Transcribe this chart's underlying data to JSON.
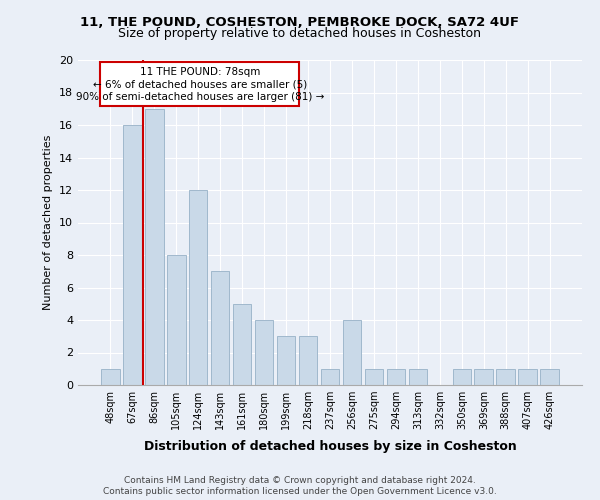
{
  "title1": "11, THE POUND, COSHESTON, PEMBROKE DOCK, SA72 4UF",
  "title2": "Size of property relative to detached houses in Cosheston",
  "xlabel": "Distribution of detached houses by size in Cosheston",
  "ylabel": "Number of detached properties",
  "categories": [
    "48sqm",
    "67sqm",
    "86sqm",
    "105sqm",
    "124sqm",
    "143sqm",
    "161sqm",
    "180sqm",
    "199sqm",
    "218sqm",
    "237sqm",
    "256sqm",
    "275sqm",
    "294sqm",
    "313sqm",
    "332sqm",
    "350sqm",
    "369sqm",
    "388sqm",
    "407sqm",
    "426sqm"
  ],
  "values": [
    1,
    16,
    17,
    8,
    12,
    7,
    5,
    4,
    3,
    3,
    1,
    4,
    1,
    1,
    1,
    0,
    1,
    1,
    1,
    1,
    1
  ],
  "bar_color": "#c9d9e8",
  "bar_edge_color": "#a0b8cc",
  "marker_label": "11 THE POUND: 78sqm",
  "annotation_line1": "← 6% of detached houses are smaller (5)",
  "annotation_line2": "90% of semi-detached houses are larger (81) →",
  "annotation_box_color": "#ffffff",
  "annotation_box_edge_color": "#cc0000",
  "vline_color": "#cc0000",
  "footer1": "Contains HM Land Registry data © Crown copyright and database right 2024.",
  "footer2": "Contains public sector information licensed under the Open Government Licence v3.0.",
  "ylim": [
    0,
    20
  ],
  "yticks": [
    0,
    2,
    4,
    6,
    8,
    10,
    12,
    14,
    16,
    18,
    20
  ],
  "bg_color": "#eaeff7",
  "plot_bg_color": "#eaeff7"
}
